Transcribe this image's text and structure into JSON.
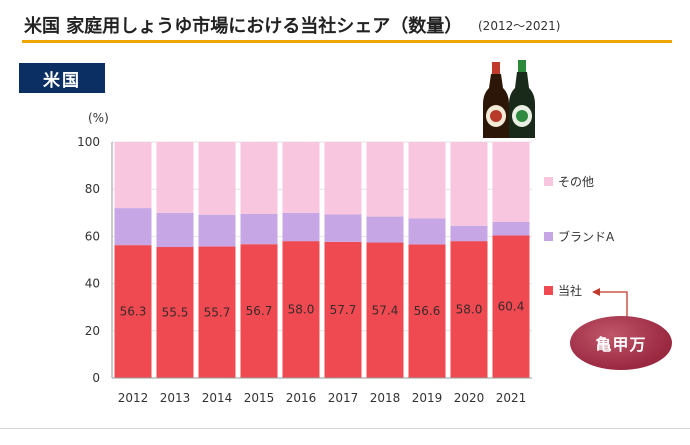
{
  "header": {
    "title": "米国 家庭用しょうゆ市場における当社シェア（数量）",
    "period": "(2012～2021)"
  },
  "region_label": "米国",
  "bottles_icon": "soy-sauce-bottles-icon",
  "annotation": {
    "label": "亀甲万"
  },
  "colors": {
    "company": "#ef4a52",
    "brand_a": "#c7a6e6",
    "other": "#f8c6de",
    "badge": "#0b2e63",
    "accent_line": "#f0a500",
    "arrow": "#c0392b"
  },
  "chart_data": {
    "type": "bar",
    "stacked": true,
    "title": "",
    "xlabel": "",
    "ylabel": "(%)",
    "ylim": [
      0,
      100
    ],
    "yticks": [
      0,
      20,
      40,
      60,
      80,
      100
    ],
    "categories": [
      "2012",
      "2013",
      "2014",
      "2015",
      "2016",
      "2017",
      "2018",
      "2019",
      "2020",
      "2021"
    ],
    "legend_position": "right",
    "series": [
      {
        "name": "当社",
        "values": [
          56.3,
          55.5,
          55.7,
          56.7,
          58.0,
          57.7,
          57.4,
          56.6,
          58.0,
          60.4
        ],
        "labels": [
          "56.3",
          "55.5",
          "55.7",
          "56.7",
          "58.0",
          "57.7",
          "57.4",
          "56.6",
          "58.0",
          "60.4"
        ]
      },
      {
        "name": "ブランドA",
        "values": [
          15.7,
          14.5,
          13.5,
          12.8,
          12.0,
          11.6,
          11.0,
          11.0,
          6.5,
          5.8
        ]
      },
      {
        "name": "その他",
        "values": [
          28.0,
          30.0,
          30.8,
          30.5,
          30.0,
          30.7,
          31.6,
          32.4,
          35.5,
          33.8
        ]
      }
    ],
    "legend_order": [
      "その他",
      "ブランドA",
      "当社"
    ]
  }
}
